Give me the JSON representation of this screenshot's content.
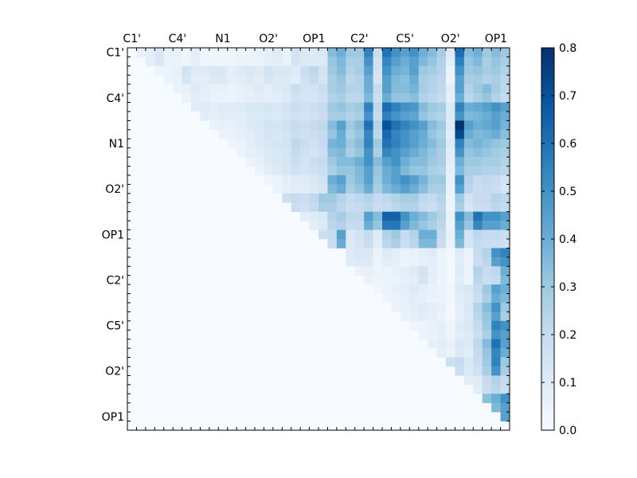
{
  "chart_data": {
    "type": "heatmap",
    "n": 42,
    "x_tick_labels": [
      "C1'",
      "C4'",
      "N1",
      "O2'",
      "OP1",
      "C2'",
      "C5'",
      "O2'",
      "OP1"
    ],
    "y_tick_labels": [
      "C1'",
      "C4'",
      "N1",
      "O2'",
      "OP1",
      "C2'",
      "C5'",
      "O2'",
      "OP1"
    ],
    "label_positions": [
      0.5,
      5.5,
      10.5,
      15.5,
      20.5,
      25.5,
      30.5,
      35.5,
      40.5
    ],
    "colorbar": {
      "min": 0.0,
      "max": 0.8,
      "ticks": [
        "0.0",
        "0.1",
        "0.2",
        "0.3",
        "0.4",
        "0.5",
        "0.6",
        "0.7",
        "0.8"
      ]
    },
    "colormap": "Blues",
    "matrix_description": "upper-triangular pairwise correlation matrix; lower triangle and diagonal are zero",
    "values": {
      "0": {
        "2": 0.08,
        "3": 0.13,
        "4": 0.06,
        "5": 0.06,
        "6": 0.04,
        "7": 0.08,
        "8": 0.04,
        "9": 0.04,
        "10": 0.04,
        "11": 0.04,
        "12": 0.05,
        "13": 0.05,
        "14": 0.06,
        "15": 0.08,
        "16": 0.1,
        "17": 0.06,
        "18": 0.15,
        "19": 0.12,
        "20": 0.11,
        "21": 0.12,
        "22": 0.35,
        "23": 0.4,
        "24": 0.3,
        "25": 0.3,
        "26": 0.55,
        "27": 0.18,
        "28": 0.6,
        "29": 0.5,
        "30": 0.45,
        "31": 0.5,
        "32": 0.4,
        "33": 0.35,
        "34": 0.28,
        "35": 0.1,
        "36": 0.62,
        "37": 0.35,
        "38": 0.4,
        "39": 0.3,
        "40": 0.35,
        "41": 0.3
      },
      "2": {
        "4": 0.05,
        "5": 0.07,
        "6": 0.15,
        "7": 0.1,
        "8": 0.1,
        "9": 0.12,
        "10": 0.12,
        "11": 0.08,
        "12": 0.1,
        "13": 0.12,
        "14": 0.1,
        "15": 0.15,
        "16": 0.12,
        "17": 0.12,
        "18": 0.1,
        "19": 0.18,
        "20": 0.22,
        "21": 0.15,
        "22": 0.3,
        "23": 0.35,
        "24": 0.25,
        "25": 0.28,
        "26": 0.45,
        "27": 0.15,
        "28": 0.5,
        "29": 0.4,
        "30": 0.38,
        "31": 0.45,
        "32": 0.3,
        "33": 0.28,
        "34": 0.25,
        "35": 0.05,
        "36": 0.5,
        "37": 0.3,
        "38": 0.32,
        "39": 0.28,
        "40": 0.3,
        "41": 0.25
      },
      "4": {
        "6": 0.06,
        "7": 0.1,
        "8": 0.08,
        "9": 0.06,
        "10": 0.06,
        "11": 0.05,
        "12": 0.07,
        "13": 0.08,
        "14": 0.1,
        "15": 0.08,
        "16": 0.1,
        "17": 0.12,
        "18": 0.18,
        "19": 0.15,
        "20": 0.15,
        "21": 0.18,
        "22": 0.28,
        "23": 0.3,
        "24": 0.25,
        "25": 0.25,
        "26": 0.4,
        "27": 0.2,
        "28": 0.45,
        "29": 0.35,
        "30": 0.35,
        "31": 0.38,
        "32": 0.28,
        "33": 0.25,
        "34": 0.22,
        "35": 0.08,
        "36": 0.45,
        "37": 0.25,
        "38": 0.3,
        "39": 0.35,
        "40": 0.28,
        "41": 0.22
      },
      "6": {
        "8": 0.1,
        "9": 0.08,
        "10": 0.1,
        "11": 0.1,
        "12": 0.1,
        "13": 0.12,
        "14": 0.12,
        "15": 0.14,
        "16": 0.12,
        "17": 0.15,
        "18": 0.18,
        "19": 0.16,
        "20": 0.18,
        "21": 0.2,
        "22": 0.3,
        "23": 0.32,
        "24": 0.28,
        "25": 0.3,
        "26": 0.55,
        "27": 0.22,
        "28": 0.62,
        "29": 0.55,
        "30": 0.5,
        "31": 0.48,
        "32": 0.35,
        "33": 0.3,
        "34": 0.28,
        "35": 0.12,
        "36": 0.55,
        "37": 0.4,
        "38": 0.42,
        "39": 0.45,
        "40": 0.5,
        "41": 0.45
      },
      "8": {
        "10": 0.06,
        "11": 0.06,
        "12": 0.08,
        "13": 0.1,
        "14": 0.12,
        "15": 0.15,
        "16": 0.14,
        "17": 0.16,
        "18": 0.2,
        "19": 0.18,
        "20": 0.2,
        "21": 0.22,
        "22": 0.35,
        "23": 0.45,
        "24": 0.3,
        "25": 0.35,
        "26": 0.6,
        "27": 0.25,
        "28": 0.7,
        "29": 0.6,
        "30": 0.55,
        "31": 0.5,
        "32": 0.45,
        "33": 0.35,
        "34": 0.3,
        "35": 0.1,
        "36": 0.8,
        "37": 0.45,
        "38": 0.4,
        "39": 0.42,
        "40": 0.45,
        "41": 0.38
      },
      "10": {
        "12": 0.05,
        "13": 0.08,
        "14": 0.1,
        "15": 0.12,
        "16": 0.14,
        "17": 0.15,
        "18": 0.22,
        "19": 0.18,
        "20": 0.16,
        "21": 0.2,
        "22": 0.38,
        "23": 0.4,
        "24": 0.3,
        "25": 0.35,
        "26": 0.55,
        "27": 0.3,
        "28": 0.6,
        "29": 0.55,
        "30": 0.5,
        "31": 0.45,
        "32": 0.4,
        "33": 0.35,
        "34": 0.3,
        "35": 0.1,
        "36": 0.55,
        "37": 0.35,
        "38": 0.38,
        "39": 0.35,
        "40": 0.32,
        "41": 0.3
      },
      "12": {
        "14": 0.06,
        "15": 0.1,
        "16": 0.12,
        "17": 0.14,
        "18": 0.18,
        "19": 0.15,
        "20": 0.18,
        "21": 0.2,
        "22": 0.3,
        "23": 0.35,
        "24": 0.35,
        "25": 0.4,
        "26": 0.5,
        "27": 0.35,
        "28": 0.45,
        "29": 0.5,
        "30": 0.4,
        "31": 0.35,
        "32": 0.35,
        "33": 0.3,
        "34": 0.28,
        "35": 0.08,
        "36": 0.4,
        "37": 0.3,
        "38": 0.3,
        "39": 0.28,
        "40": 0.28,
        "41": 0.25
      },
      "14": {
        "16": 0.05,
        "17": 0.08,
        "18": 0.1,
        "19": 0.1,
        "20": 0.12,
        "21": 0.15,
        "22": 0.4,
        "23": 0.45,
        "24": 0.3,
        "25": 0.35,
        "26": 0.45,
        "27": 0.3,
        "28": 0.4,
        "29": 0.45,
        "30": 0.5,
        "31": 0.45,
        "32": 0.38,
        "33": 0.3,
        "34": 0.3,
        "35": 0.06,
        "36": 0.5,
        "37": 0.25,
        "38": 0.2,
        "39": 0.22,
        "40": 0.2,
        "41": 0.15
      },
      "16": {
        "18": 0.2,
        "19": 0.18,
        "20": 0.22,
        "21": 0.3,
        "22": 0.3,
        "23": 0.25,
        "24": 0.2,
        "25": 0.22,
        "26": 0.25,
        "27": 0.2,
        "28": 0.22,
        "29": 0.25,
        "30": 0.28,
        "31": 0.28,
        "32": 0.22,
        "33": 0.2,
        "34": 0.25,
        "35": 0.05,
        "36": 0.3,
        "37": 0.15,
        "38": 0.2,
        "39": 0.2,
        "40": 0.25,
        "41": 0.22
      },
      "18": {
        "20": 0.1,
        "21": 0.12,
        "22": 0.25,
        "23": 0.28,
        "24": 0.22,
        "25": 0.22,
        "26": 0.45,
        "27": 0.35,
        "28": 0.65,
        "29": 0.65,
        "30": 0.5,
        "31": 0.4,
        "32": 0.35,
        "33": 0.3,
        "34": 0.25,
        "35": 0.06,
        "36": 0.5,
        "37": 0.35,
        "38": 0.6,
        "39": 0.5,
        "40": 0.5,
        "41": 0.45
      },
      "20": {
        "22": 0.2,
        "23": 0.45,
        "24": 0.12,
        "25": 0.15,
        "26": 0.2,
        "27": 0.1,
        "28": 0.25,
        "29": 0.3,
        "30": 0.2,
        "31": 0.25,
        "32": 0.4,
        "33": 0.4,
        "34": 0.2,
        "35": 0.06,
        "36": 0.4,
        "37": 0.15,
        "38": 0.22,
        "39": 0.2,
        "40": 0.2,
        "41": 0.18
      },
      "22": {
        "25": 0.12,
        "26": 0.12,
        "27": 0.05,
        "28": 0.1,
        "29": 0.08,
        "30": 0.05,
        "31": 0.06,
        "32": 0.08,
        "33": 0.1,
        "34": 0.05,
        "35": 0.02,
        "36": 0.1,
        "37": 0.05,
        "38": 0.2,
        "39": 0.25,
        "40": 0.5,
        "41": 0.55
      },
      "24": {
        "26": 0.06,
        "27": 0.04,
        "28": 0.05,
        "29": 0.06,
        "30": 0.08,
        "31": 0.1,
        "32": 0.15,
        "33": 0.08,
        "34": 0.05,
        "35": 0.02,
        "36": 0.1,
        "37": 0.04,
        "38": 0.25,
        "39": 0.2,
        "40": 0.22,
        "41": 0.4
      },
      "26": {
        "28": 0.04,
        "29": 0.06,
        "30": 0.08,
        "31": 0.1,
        "32": 0.08,
        "33": 0.06,
        "34": 0.05,
        "35": 0.03,
        "36": 0.1,
        "37": 0.12,
        "38": 0.2,
        "39": 0.3,
        "40": 0.45,
        "41": 0.4
      },
      "28": {
        "30": 0.06,
        "31": 0.08,
        "32": 0.1,
        "33": 0.08,
        "34": 0.06,
        "35": 0.02,
        "36": 0.08,
        "37": 0.12,
        "38": 0.25,
        "39": 0.35,
        "40": 0.5,
        "41": 0.3
      },
      "30": {
        "32": 0.05,
        "33": 0.06,
        "34": 0.08,
        "35": 0.04,
        "36": 0.1,
        "37": 0.12,
        "38": 0.2,
        "39": 0.3,
        "40": 0.55,
        "41": 0.5
      },
      "32": {
        "34": 0.08,
        "35": 0.06,
        "36": 0.12,
        "37": 0.1,
        "38": 0.22,
        "39": 0.35,
        "40": 0.6,
        "41": 0.45
      },
      "34": {
        "36": 0.2,
        "37": 0.12,
        "38": 0.18,
        "39": 0.3,
        "40": 0.55,
        "41": 0.3
      },
      "36": {
        "38": 0.1,
        "39": 0.2,
        "40": 0.25,
        "41": 0.2
      },
      "38": {
        "40": 0.4,
        "41": 0.5
      }
    }
  }
}
